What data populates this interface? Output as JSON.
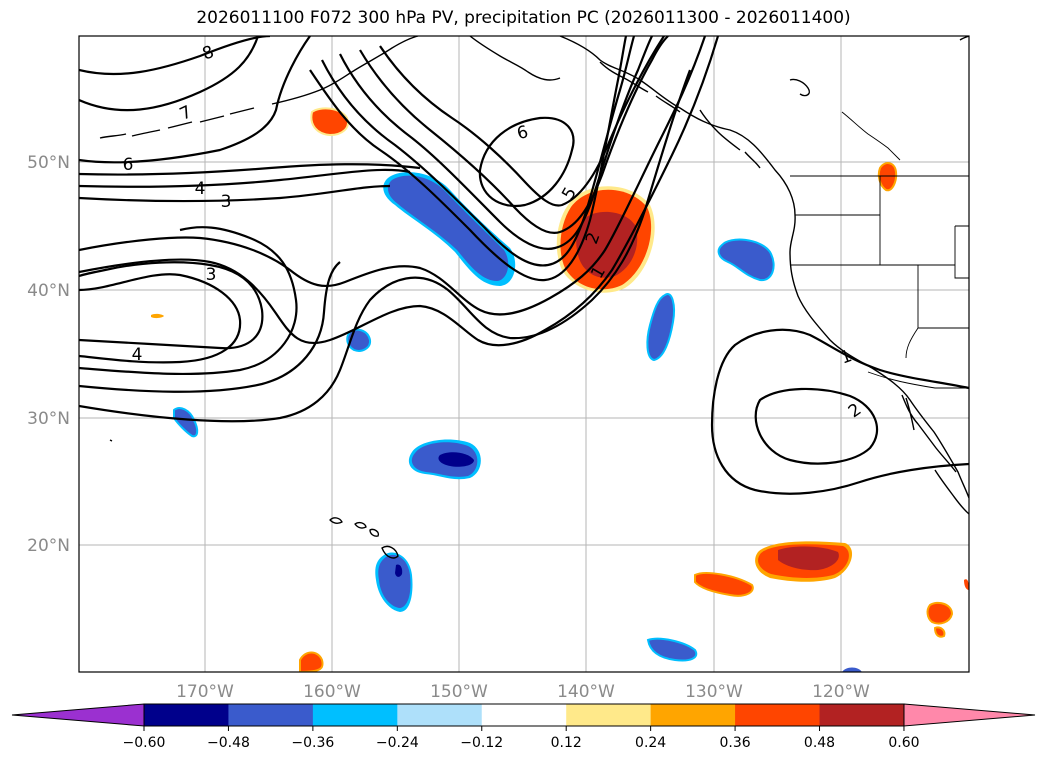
{
  "title": "2026011100 F072 300 hPa PV, precipitation PC (2026011300 - 2026011400)",
  "lat_labels": [
    "50°N",
    "40°N",
    "30°N",
    "20°N"
  ],
  "lon_labels": [
    "170°W",
    "160°W",
    "150°W",
    "140°W",
    "130°W",
    "120°W"
  ],
  "contour_labels": [
    "8",
    "7",
    "6",
    "4",
    "3",
    "3",
    "4",
    "6",
    "5",
    "2",
    "1",
    "1",
    "2"
  ],
  "colorbar": {
    "ticks": [
      "−0.60",
      "−0.48",
      "−0.36",
      "−0.24",
      "−0.12",
      "0.12",
      "0.24",
      "0.36",
      "0.48",
      "0.60"
    ],
    "colors": [
      "#9b30d0",
      "#00008b",
      "#3a5bcc",
      "#00bfff",
      "#aee0fa",
      "#ffffff",
      "#ffe98a",
      "#ffa500",
      "#ff4500",
      "#b22222",
      "#ff88aa"
    ]
  },
  "colors": {
    "neg_strong": "#00008b",
    "neg_mid": "#3a5bcc",
    "neg_light": "#00bfff",
    "neg_faint": "#aee0fa",
    "pos_faint": "#ffe98a",
    "pos_light": "#ffa500",
    "pos_mid": "#ff4500",
    "pos_strong": "#b22222"
  }
}
